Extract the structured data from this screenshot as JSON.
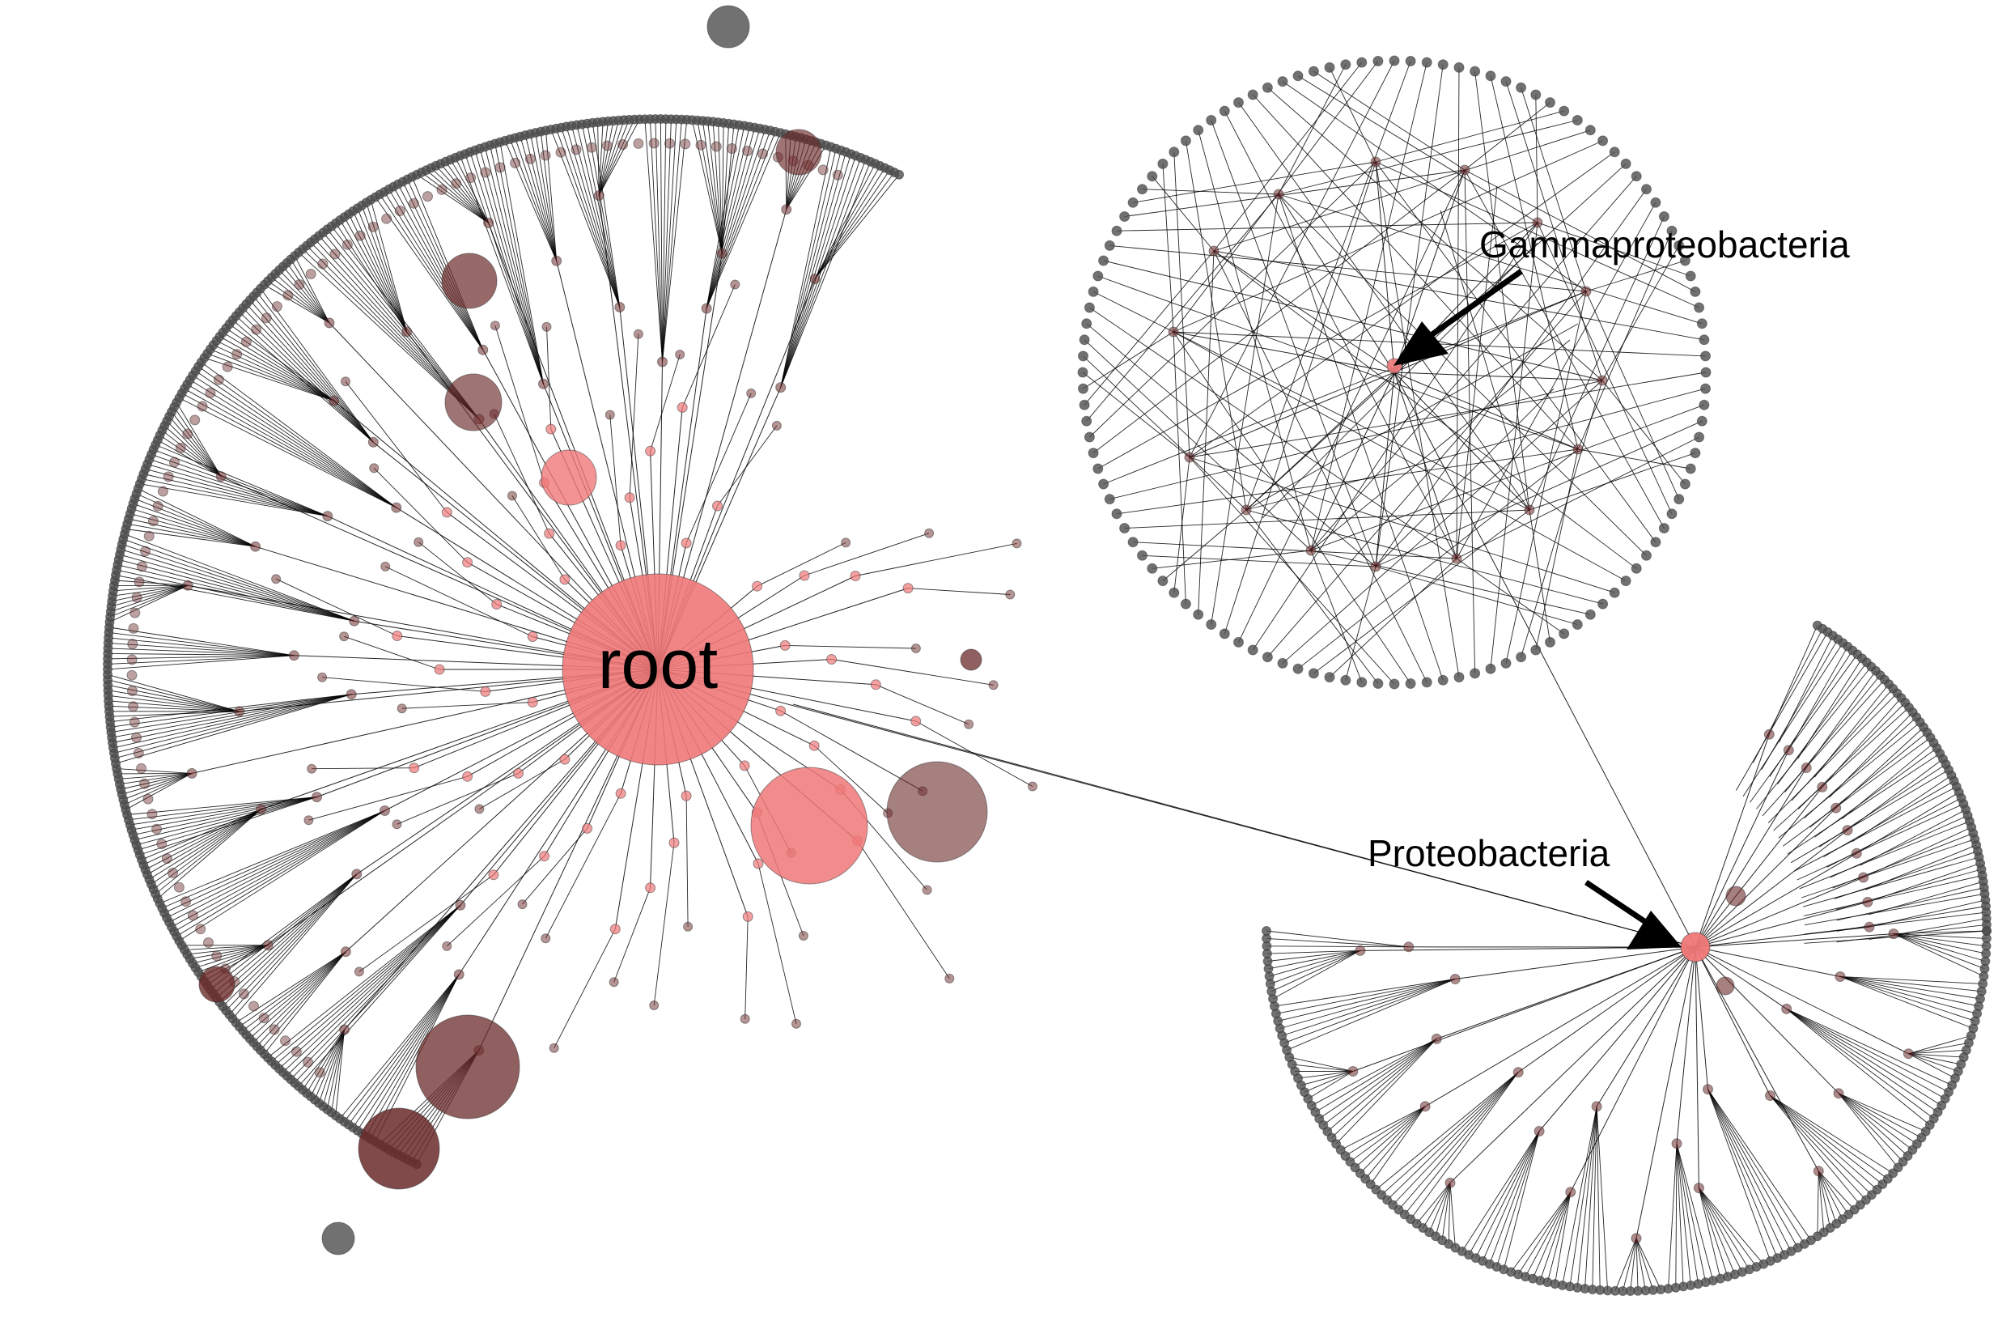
{
  "labels": {
    "root": "root",
    "gamma": "Gammaproteobacteria",
    "proteo": "Proteobacteria"
  },
  "colors": {
    "background": "#ffffff",
    "edge": "#000000",
    "leaf": "#4d4d4d",
    "internal_light": "#f07878",
    "internal_dark": "#6b2a2a",
    "arrow": "#000000"
  }
}
